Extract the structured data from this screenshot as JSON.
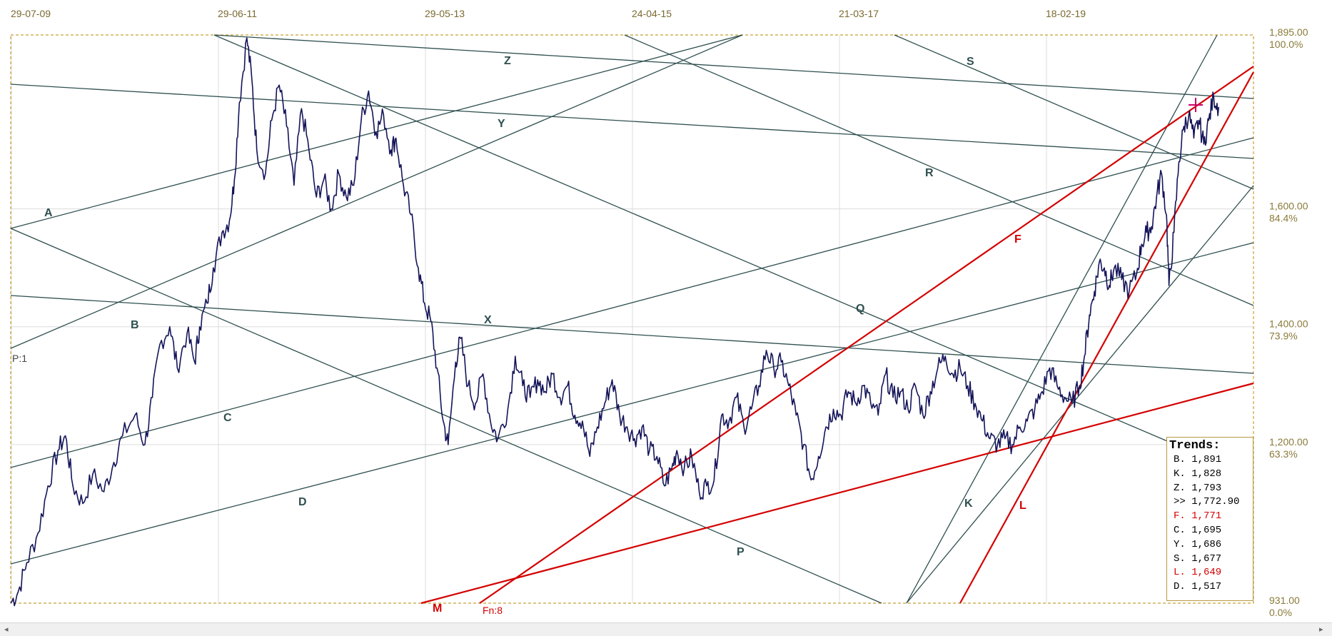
{
  "chart_data": {
    "type": "line",
    "x_ticks": [
      "29-07-09",
      "29-06-11",
      "29-05-13",
      "24-04-15",
      "21-03-17",
      "18-02-19"
    ],
    "y_ticks": [
      {
        "value": 1895,
        "price": "1,895.00",
        "pct": "100.0%"
      },
      {
        "value": 1600,
        "price": "1,600.00",
        "pct": "84.4%"
      },
      {
        "value": 1400,
        "price": "1,400.00",
        "pct": "73.9%"
      },
      {
        "value": 1200,
        "price": "1,200.00",
        "pct": "63.3%"
      },
      {
        "value": 931,
        "price": "931.00",
        "pct": "0.0%"
      }
    ],
    "ylim": [
      931,
      1895
    ],
    "grid": true,
    "series": [
      {
        "values": [
          [
            0,
            931
          ],
          [
            0.006,
            950
          ],
          [
            0.013,
            1000
          ],
          [
            0.022,
            1050
          ],
          [
            0.03,
            1130
          ],
          [
            0.038,
            1190
          ],
          [
            0.044,
            1215
          ],
          [
            0.05,
            1130
          ],
          [
            0.058,
            1100
          ],
          [
            0.066,
            1150
          ],
          [
            0.075,
            1120
          ],
          [
            0.083,
            1170
          ],
          [
            0.09,
            1215
          ],
          [
            0.1,
            1250
          ],
          [
            0.108,
            1200
          ],
          [
            0.114,
            1280
          ],
          [
            0.12,
            1370
          ],
          [
            0.128,
            1400
          ],
          [
            0.134,
            1330
          ],
          [
            0.142,
            1390
          ],
          [
            0.148,
            1340
          ],
          [
            0.152,
            1400
          ],
          [
            0.158,
            1440
          ],
          [
            0.163,
            1500
          ],
          [
            0.17,
            1560
          ],
          [
            0.176,
            1580
          ],
          [
            0.18,
            1650
          ],
          [
            0.184,
            1780
          ],
          [
            0.19,
            1890
          ],
          [
            0.194,
            1820
          ],
          [
            0.198,
            1700
          ],
          [
            0.205,
            1660
          ],
          [
            0.21,
            1750
          ],
          [
            0.216,
            1810
          ],
          [
            0.222,
            1740
          ],
          [
            0.228,
            1640
          ],
          [
            0.234,
            1770
          ],
          [
            0.24,
            1700
          ],
          [
            0.246,
            1620
          ],
          [
            0.252,
            1650
          ],
          [
            0.258,
            1600
          ],
          [
            0.264,
            1660
          ],
          [
            0.27,
            1620
          ],
          [
            0.276,
            1640
          ],
          [
            0.282,
            1750
          ],
          [
            0.288,
            1800
          ],
          [
            0.294,
            1730
          ],
          [
            0.3,
            1760
          ],
          [
            0.306,
            1700
          ],
          [
            0.31,
            1720
          ],
          [
            0.316,
            1640
          ],
          [
            0.322,
            1590
          ],
          [
            0.328,
            1500
          ],
          [
            0.333,
            1440
          ],
          [
            0.338,
            1410
          ],
          [
            0.343,
            1330
          ],
          [
            0.348,
            1240
          ],
          [
            0.352,
            1200
          ],
          [
            0.358,
            1340
          ],
          [
            0.362,
            1380
          ],
          [
            0.368,
            1300
          ],
          [
            0.374,
            1270
          ],
          [
            0.38,
            1320
          ],
          [
            0.386,
            1240
          ],
          [
            0.392,
            1210
          ],
          [
            0.4,
            1260
          ],
          [
            0.406,
            1350
          ],
          [
            0.412,
            1300
          ],
          [
            0.418,
            1280
          ],
          [
            0.424,
            1310
          ],
          [
            0.43,
            1290
          ],
          [
            0.436,
            1320
          ],
          [
            0.442,
            1280
          ],
          [
            0.448,
            1300
          ],
          [
            0.454,
            1250
          ],
          [
            0.46,
            1240
          ],
          [
            0.466,
            1180
          ],
          [
            0.472,
            1230
          ],
          [
            0.478,
            1270
          ],
          [
            0.484,
            1310
          ],
          [
            0.49,
            1250
          ],
          [
            0.496,
            1230
          ],
          [
            0.502,
            1210
          ],
          [
            0.508,
            1230
          ],
          [
            0.514,
            1190
          ],
          [
            0.52,
            1180
          ],
          [
            0.526,
            1130
          ],
          [
            0.532,
            1160
          ],
          [
            0.536,
            1190
          ],
          [
            0.542,
            1160
          ],
          [
            0.548,
            1180
          ],
          [
            0.554,
            1120
          ],
          [
            0.56,
            1130
          ],
          [
            0.566,
            1140
          ],
          [
            0.572,
            1250
          ],
          [
            0.578,
            1240
          ],
          [
            0.584,
            1280
          ],
          [
            0.59,
            1230
          ],
          [
            0.596,
            1260
          ],
          [
            0.602,
            1300
          ],
          [
            0.608,
            1360
          ],
          [
            0.614,
            1330
          ],
          [
            0.62,
            1340
          ],
          [
            0.626,
            1300
          ],
          [
            0.632,
            1250
          ],
          [
            0.638,
            1200
          ],
          [
            0.644,
            1140
          ],
          [
            0.65,
            1180
          ],
          [
            0.656,
            1230
          ],
          [
            0.662,
            1260
          ],
          [
            0.668,
            1250
          ],
          [
            0.674,
            1290
          ],
          [
            0.68,
            1270
          ],
          [
            0.686,
            1300
          ],
          [
            0.692,
            1270
          ],
          [
            0.698,
            1250
          ],
          [
            0.704,
            1320
          ],
          [
            0.71,
            1280
          ],
          [
            0.716,
            1290
          ],
          [
            0.722,
            1260
          ],
          [
            0.728,
            1300
          ],
          [
            0.734,
            1250
          ],
          [
            0.74,
            1290
          ],
          [
            0.746,
            1330
          ],
          [
            0.752,
            1350
          ],
          [
            0.758,
            1320
          ],
          [
            0.764,
            1330
          ],
          [
            0.77,
            1300
          ],
          [
            0.776,
            1270
          ],
          [
            0.782,
            1240
          ],
          [
            0.788,
            1210
          ],
          [
            0.794,
            1200
          ],
          [
            0.8,
            1210
          ],
          [
            0.806,
            1200
          ],
          [
            0.812,
            1230
          ],
          [
            0.818,
            1240
          ],
          [
            0.824,
            1260
          ],
          [
            0.83,
            1290
          ],
          [
            0.836,
            1330
          ],
          [
            0.842,
            1300
          ],
          [
            0.848,
            1280
          ],
          [
            0.854,
            1270
          ],
          [
            0.86,
            1300
          ],
          [
            0.864,
            1350
          ],
          [
            0.868,
            1420
          ],
          [
            0.872,
            1460
          ],
          [
            0.876,
            1510
          ],
          [
            0.88,
            1500
          ],
          [
            0.884,
            1470
          ],
          [
            0.888,
            1500
          ],
          [
            0.894,
            1480
          ],
          [
            0.9,
            1460
          ],
          [
            0.906,
            1490
          ],
          [
            0.91,
            1540
          ],
          [
            0.914,
            1560
          ],
          [
            0.918,
            1570
          ],
          [
            0.922,
            1620
          ],
          [
            0.926,
            1660
          ],
          [
            0.93,
            1590
          ],
          [
            0.932,
            1470
          ],
          [
            0.936,
            1560
          ],
          [
            0.94,
            1680
          ],
          [
            0.944,
            1740
          ],
          [
            0.948,
            1760
          ],
          [
            0.952,
            1720
          ],
          [
            0.956,
            1750
          ],
          [
            0.96,
            1710
          ],
          [
            0.964,
            1750
          ],
          [
            0.968,
            1790
          ],
          [
            0.972,
            1772.9
          ]
        ]
      }
    ],
    "trend_lines": [
      {
        "label": "A",
        "color": "#2f4f4f"
      },
      {
        "label": "B",
        "color": "#2f4f4f"
      },
      {
        "label": "C",
        "color": "#2f4f4f"
      },
      {
        "label": "D",
        "color": "#2f4f4f"
      },
      {
        "label": "X",
        "color": "#2f4f4f"
      },
      {
        "label": "Y",
        "color": "#2f4f4f"
      },
      {
        "label": "Z",
        "color": "#2f4f4f"
      },
      {
        "label": "P",
        "color": "#2f4f4f"
      },
      {
        "label": "Q",
        "color": "#2f4f4f"
      },
      {
        "label": "R",
        "color": "#2f4f4f"
      },
      {
        "label": "S",
        "color": "#2f4f4f"
      },
      {
        "label": "K",
        "color": "#2f4f4f"
      },
      {
        "label": "F",
        "color": "#d40000"
      },
      {
        "label": "L",
        "color": "#d40000"
      },
      {
        "label": "M",
        "color": "#d40000"
      }
    ],
    "annotations": {
      "p_label": "P:1",
      "fn_label": "Fn:8"
    },
    "colors": {
      "price_line": "#14145a",
      "trend_line": "#2f4f4f",
      "red_line": "#d40000",
      "border": "#c8a030",
      "grid": "#dddddd",
      "marker": "#cc0066"
    }
  },
  "trends": {
    "title": "Trends:",
    "rows": [
      {
        "text": "B. 1,891",
        "color": "#000000"
      },
      {
        "text": "K. 1,828",
        "color": "#000000"
      },
      {
        "text": "Z. 1,793",
        "color": "#000000"
      },
      {
        "text": ">> 1,772.90",
        "color": "#000000"
      },
      {
        "text": "F. 1,771",
        "color": "#d40000"
      },
      {
        "text": "C. 1,695",
        "color": "#000000"
      },
      {
        "text": "Y. 1,686",
        "color": "#000000"
      },
      {
        "text": "S. 1,677",
        "color": "#000000"
      },
      {
        "text": "L. 1,649",
        "color": "#d40000"
      },
      {
        "text": "D. 1,517",
        "color": "#000000"
      }
    ]
  },
  "scrollbar": {
    "left_arrow": "◂",
    "right_arrow": "▸"
  }
}
